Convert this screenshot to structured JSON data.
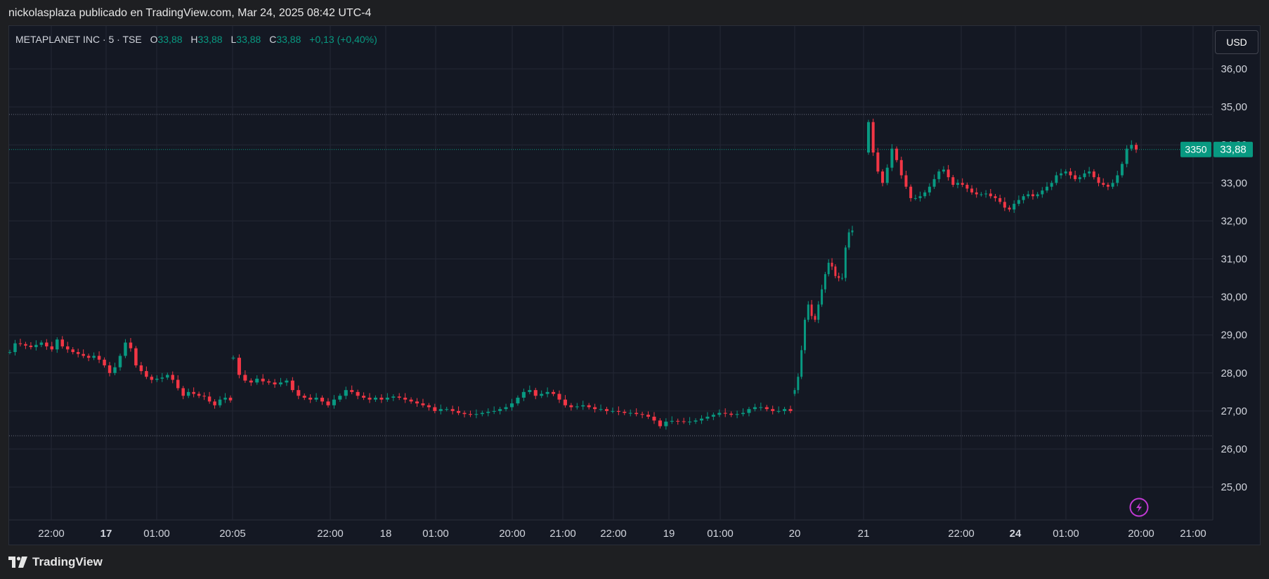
{
  "header": {
    "caption": "nickolasplaza publicado en TradingView.com, Mar 24, 2025 08:42 UTC-4"
  },
  "legend": {
    "symbol": "METAPLANET INC · 5 · TSE",
    "open_label": "O",
    "open": "33,88",
    "high_label": "H",
    "high": "33,88",
    "low_label": "L",
    "low": "33,88",
    "close_label": "C",
    "close": "33,88",
    "change": "+0,13 (+0,40%)"
  },
  "currency_button": "USD",
  "price_labels": {
    "last_price": "33,88",
    "secondary": "3350"
  },
  "footer": {
    "brand": "TradingView"
  },
  "colors": {
    "up": "#089981",
    "down": "#f23645",
    "background": "#141823",
    "grid": "#232734",
    "text": "#d1d4dc"
  },
  "icons": {
    "flash": "lightning-icon",
    "brand": "tradingview-logo-icon"
  },
  "chart_data": {
    "type": "candlestick",
    "currency": "USD",
    "ylim": [
      24.4,
      36.6
    ],
    "y_ticks": [
      "25,00",
      "26,00",
      "27,00",
      "28,00",
      "29,00",
      "30,00",
      "31,00",
      "32,00",
      "33,00",
      "34,00",
      "35,00",
      "36,00"
    ],
    "x_ticks": [
      "22:00",
      "17",
      "01:00",
      "20:05",
      "22:00",
      "18",
      "01:00",
      "20:00",
      "21:00",
      "22:00",
      "19",
      "01:00",
      "20",
      "21",
      "22:00",
      "24",
      "01:00",
      "20:00",
      "21:00"
    ],
    "x_ticks_bold": [
      "17",
      "24"
    ],
    "horizontal_levels": [
      34.8,
      26.35
    ],
    "last_price": 33.88,
    "series": [
      {
        "segments": [
          {
            "points": [
              28.55,
              28.78,
              28.76,
              28.72,
              28.68,
              28.74,
              28.8,
              28.7,
              28.62,
              28.88,
              28.7,
              28.62,
              28.55,
              28.5,
              28.45,
              28.4,
              28.45,
              28.35,
              28.2,
              28.0,
              28.15,
              28.45,
              28.8,
              28.65,
              28.2,
              28.05,
              27.9,
              27.82,
              27.85,
              27.88,
              27.95,
              27.82,
              27.6,
              27.4,
              27.5,
              27.45,
              27.4,
              27.38,
              27.25,
              27.15,
              27.3,
              27.35,
              27.28
            ]
          },
          {
            "points": [
              28.4,
              27.95,
              27.8,
              27.75,
              27.85,
              27.78,
              27.75,
              27.7,
              27.75,
              27.8,
              27.55,
              27.4,
              27.35,
              27.3,
              27.35,
              27.25,
              27.15,
              27.3,
              27.4,
              27.55,
              27.5,
              27.4,
              27.35,
              27.3,
              27.35,
              27.3,
              27.35,
              27.38,
              27.35,
              27.3,
              27.25,
              27.2,
              27.15,
              27.1,
              27.0,
              27.05,
              27.05,
              27.0,
              26.95,
              26.92,
              26.9,
              26.92,
              26.95,
              26.98,
              27.0,
              27.05,
              27.1,
              27.2,
              27.35,
              27.5,
              27.55,
              27.4,
              27.45,
              27.5,
              27.45,
              27.3,
              27.15,
              27.1,
              27.12,
              27.15,
              27.1,
              27.05,
              27.05,
              27.0,
              27.0,
              26.98,
              26.95,
              26.95,
              26.92,
              26.9,
              26.85,
              26.75,
              26.6,
              26.72,
              26.74,
              26.73,
              26.72,
              26.72,
              26.75,
              26.8,
              26.85,
              26.9,
              26.95,
              26.93,
              26.9,
              26.92,
              26.95,
              27.05,
              27.1,
              27.1,
              27.05,
              27.0,
              27.0,
              27.05,
              27.0
            ]
          },
          {
            "points": [
              27.55,
              27.9,
              28.6,
              29.4,
              29.8,
              29.5,
              29.4,
              29.8,
              30.2,
              30.6,
              30.9,
              30.8,
              30.55,
              30.5,
              30.5,
              31.3,
              31.7,
              31.75
            ]
          },
          {
            "points": [
              34.6,
              33.8,
              33.3,
              33.0,
              33.4,
              33.9,
              33.6,
              33.2,
              32.9,
              32.6,
              32.6,
              32.65,
              32.75,
              32.9,
              33.1,
              33.3,
              33.35,
              33.15,
              32.95,
              33.0,
              32.95,
              32.85,
              32.75,
              32.7,
              32.7,
              32.72,
              32.65,
              32.6,
              32.5,
              32.35,
              32.3,
              32.45,
              32.55,
              32.65,
              32.7,
              32.65,
              32.7,
              32.8,
              32.9,
              33.0,
              33.2,
              33.25,
              33.3,
              33.2,
              33.1,
              33.15,
              33.25,
              33.3,
              33.15,
              33.0,
              32.95,
              32.9,
              33.0,
              33.2,
              33.5,
              33.9,
              34.0,
              33.88
            ]
          }
        ]
      }
    ]
  }
}
